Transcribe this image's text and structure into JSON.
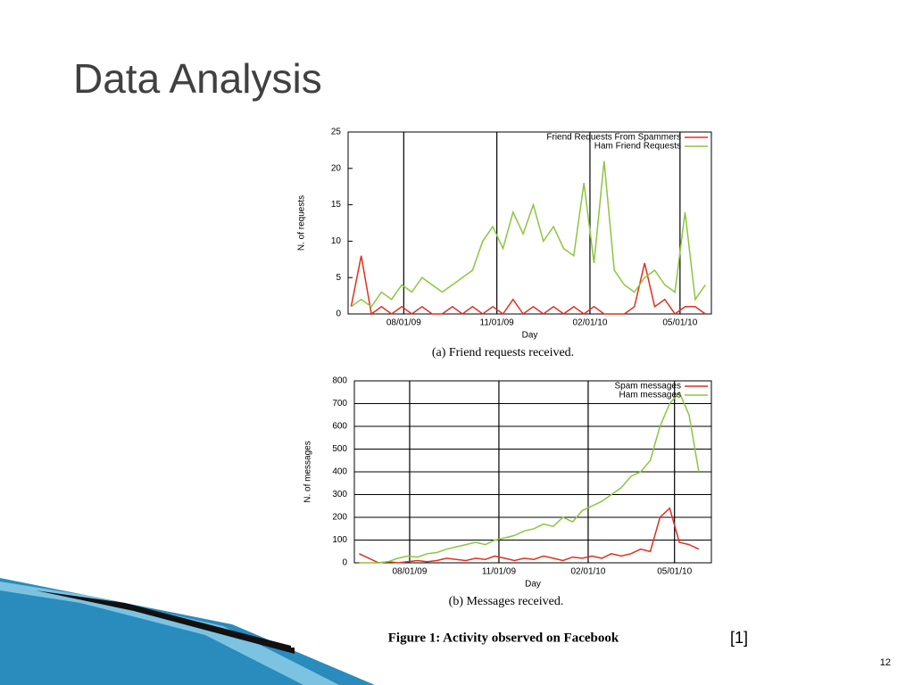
{
  "slide": {
    "title": "Data Analysis",
    "caption": "Figure 1: Activity observed on Facebook",
    "citation": "[1]",
    "page_number": "12"
  },
  "chart_data": [
    {
      "type": "line",
      "subcaption": "(a) Friend requests received.",
      "x_label": "Day",
      "y_label": "N. of requests",
      "x": [
        "06/10/09",
        "06/20/09",
        "06/30/09",
        "07/10/09",
        "07/20/09",
        "07/30/09",
        "08/09/09",
        "08/19/09",
        "08/29/09",
        "09/08/09",
        "09/18/09",
        "09/28/09",
        "10/08/09",
        "10/18/09",
        "10/28/09",
        "11/07/09",
        "11/17/09",
        "11/27/09",
        "12/07/09",
        "12/17/09",
        "12/27/09",
        "01/06/10",
        "01/16/10",
        "01/26/10",
        "02/05/10",
        "02/15/10",
        "02/25/10",
        "03/07/10",
        "03/17/10",
        "03/27/10",
        "04/06/10",
        "04/16/10",
        "04/26/10",
        "05/06/10",
        "05/16/10",
        "05/26/10"
      ],
      "series": [
        {
          "name": "Friend Requests From Spammers",
          "color": "#e0301e",
          "values": [
            1,
            8,
            0,
            1,
            0,
            1,
            0,
            1,
            0,
            0,
            1,
            0,
            1,
            0,
            1,
            0,
            2,
            0,
            1,
            0,
            1,
            0,
            1,
            0,
            1,
            0,
            0,
            0,
            1,
            7,
            1,
            2,
            0,
            1,
            1,
            0
          ]
        },
        {
          "name": "Ham Friend Requests",
          "color": "#8cc63f",
          "values": [
            1,
            2,
            1,
            3,
            2,
            4,
            3,
            5,
            4,
            3,
            4,
            5,
            6,
            10,
            12,
            9,
            14,
            11,
            15,
            10,
            12,
            9,
            8,
            18,
            7,
            21,
            6,
            4,
            3,
            5,
            6,
            4,
            3,
            14,
            2,
            4
          ]
        }
      ],
      "xlim": [
        "06/07/09",
        "06/01/10"
      ],
      "xticks": [
        "08/01/09",
        "11/01/09",
        "02/01/10",
        "05/01/10"
      ],
      "ylim": [
        0,
        25
      ],
      "yticks": [
        0,
        5,
        10,
        15,
        20,
        25
      ],
      "grid": "x",
      "legend": "upper right"
    },
    {
      "type": "line",
      "subcaption": "(b) Messages received.",
      "x_label": "Day",
      "y_label": "N. of messages",
      "x": [
        "06/10/09",
        "06/20/09",
        "06/30/09",
        "07/10/09",
        "07/20/09",
        "07/30/09",
        "08/09/09",
        "08/19/09",
        "08/29/09",
        "09/08/09",
        "09/18/09",
        "09/28/09",
        "10/08/09",
        "10/18/09",
        "10/28/09",
        "11/07/09",
        "11/17/09",
        "11/27/09",
        "12/07/09",
        "12/17/09",
        "12/27/09",
        "01/06/10",
        "01/16/10",
        "01/26/10",
        "02/05/10",
        "02/15/10",
        "02/25/10",
        "03/07/10",
        "03/17/10",
        "03/27/10",
        "04/06/10",
        "04/16/10",
        "04/26/10",
        "05/06/10",
        "05/16/10",
        "05/26/10"
      ],
      "series": [
        {
          "name": "Spam messages",
          "color": "#e0301e",
          "values": [
            40,
            20,
            0,
            5,
            0,
            5,
            10,
            5,
            10,
            20,
            15,
            10,
            20,
            15,
            30,
            20,
            10,
            20,
            15,
            30,
            20,
            10,
            25,
            20,
            30,
            20,
            40,
            30,
            40,
            60,
            50,
            200,
            240,
            90,
            80,
            60
          ]
        },
        {
          "name": "Ham messages",
          "color": "#8cc63f",
          "values": [
            0,
            0,
            0,
            5,
            20,
            30,
            25,
            40,
            45,
            60,
            70,
            80,
            90,
            80,
            100,
            110,
            120,
            140,
            150,
            170,
            160,
            200,
            180,
            230,
            250,
            270,
            300,
            330,
            380,
            400,
            450,
            600,
            700,
            750,
            650,
            400
          ]
        }
      ],
      "xlim": [
        "06/05/09",
        "06/08/10"
      ],
      "xticks": [
        "08/01/09",
        "11/01/09",
        "02/01/10",
        "05/01/10"
      ],
      "ylim": [
        0,
        800
      ],
      "yticks": [
        0,
        100,
        200,
        300,
        400,
        500,
        600,
        700,
        800
      ],
      "grid": "both",
      "legend": "upper right"
    }
  ]
}
